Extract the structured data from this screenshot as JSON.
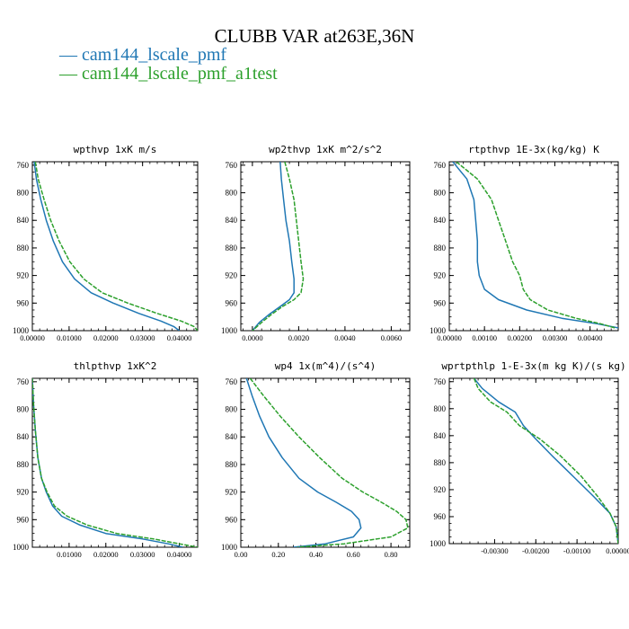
{
  "title": "CLUBB VAR at263E,36N",
  "legend": [
    {
      "label": "— cam144_lscale_pmf",
      "color": "#1f77b4"
    },
    {
      "label": "— cam144_lscale_pmf_a1test",
      "color": "#2ca02c"
    }
  ],
  "chart_data": [
    {
      "type": "line",
      "title": "wpthvp  1xK m/s",
      "xlim": [
        0,
        0.045
      ],
      "ylim": [
        1000,
        755
      ],
      "xticks": [
        0,
        0.01,
        0.02,
        0.03,
        0.04
      ],
      "xtick_labels": [
        "0.00000",
        "0.01000",
        "0.02000",
        "0.03000",
        "0.04000"
      ],
      "yticks": [
        760,
        800,
        840,
        880,
        920,
        960,
        1000
      ],
      "series": [
        {
          "name": "cam144_lscale_pmf",
          "color": "#1f77b4",
          "x": [
            0.0005,
            0.0011,
            0.0023,
            0.0038,
            0.0057,
            0.0082,
            0.0115,
            0.016,
            0.022,
            0.029,
            0.035,
            0.0385,
            0.04
          ],
          "y": [
            755,
            780,
            810,
            840,
            870,
            900,
            925,
            945,
            960,
            975,
            986,
            994,
            1000
          ]
        },
        {
          "name": "cam144_lscale_pmf_a1test",
          "color": "#2ca02c",
          "x": [
            0.0008,
            0.0016,
            0.0032,
            0.005,
            0.0073,
            0.0102,
            0.014,
            0.019,
            0.026,
            0.034,
            0.0405,
            0.044,
            0.045
          ],
          "y": [
            755,
            780,
            810,
            840,
            870,
            900,
            925,
            945,
            960,
            975,
            986,
            994,
            1000
          ]
        }
      ]
    },
    {
      "type": "line",
      "title": "wp2thvp  1xK m^2/s^2",
      "xlim": [
        -0.0005,
        0.0068
      ],
      "ylim": [
        1000,
        755
      ],
      "xticks": [
        0,
        0.002,
        0.004,
        0.006
      ],
      "xtick_labels": [
        "0.0000",
        "0.0020",
        "0.0040",
        "0.0060"
      ],
      "yticks": [
        760,
        800,
        840,
        880,
        920,
        960,
        1000
      ],
      "series": [
        {
          "name": "cam144_lscale_pmf",
          "color": "#1f77b4",
          "x": [
            0.0012,
            0.00125,
            0.00135,
            0.00145,
            0.0016,
            0.0017,
            0.0018,
            0.0018,
            0.0016,
            0.0012,
            0.0007,
            0.0003,
            0.0
          ],
          "y": [
            755,
            780,
            810,
            840,
            870,
            900,
            925,
            945,
            955,
            965,
            977,
            988,
            1000
          ]
        },
        {
          "name": "cam144_lscale_pmf_a1test",
          "color": "#2ca02c",
          "x": [
            0.0014,
            0.0016,
            0.0018,
            0.0019,
            0.002,
            0.0021,
            0.0022,
            0.0021,
            0.0018,
            0.0013,
            0.0008,
            0.0004,
            0.0
          ],
          "y": [
            755,
            780,
            810,
            840,
            870,
            900,
            925,
            945,
            955,
            965,
            977,
            988,
            1000
          ]
        }
      ]
    },
    {
      "type": "line",
      "title": "rtpthvp  1E-3x(kg/kg) K",
      "xlim": [
        0,
        0.0048
      ],
      "ylim": [
        1000,
        755
      ],
      "xticks": [
        0,
        0.001,
        0.002,
        0.003,
        0.004
      ],
      "xtick_labels": [
        "0.00000",
        "0.00100",
        "0.00200",
        "0.00300",
        "0.00400"
      ],
      "yticks": [
        760,
        800,
        840,
        880,
        920,
        960,
        1000
      ],
      "series": [
        {
          "name": "cam144_lscale_pmf",
          "color": "#1f77b4",
          "x": [
            0.0001,
            0.0005,
            0.0007,
            0.00075,
            0.0008,
            0.0008,
            0.00085,
            0.001,
            0.0014,
            0.0022,
            0.0032,
            0.0042,
            0.0048
          ],
          "y": [
            755,
            780,
            810,
            840,
            870,
            900,
            920,
            940,
            955,
            970,
            982,
            990,
            996
          ]
        },
        {
          "name": "cam144_lscale_pmf_a1test",
          "color": "#2ca02c",
          "x": [
            0.0002,
            0.0008,
            0.0012,
            0.0014,
            0.0016,
            0.0018,
            0.002,
            0.0021,
            0.0023,
            0.0028,
            0.0036,
            0.0043,
            0.0047
          ],
          "y": [
            755,
            780,
            810,
            840,
            870,
            900,
            920,
            940,
            955,
            970,
            982,
            990,
            996
          ]
        }
      ]
    },
    {
      "type": "line",
      "title": "thlpthvp  1xK^2",
      "xlim": [
        0,
        0.045
      ],
      "ylim": [
        1000,
        755
      ],
      "xticks": [
        0.01,
        0.02,
        0.03,
        0.04
      ],
      "xtick_labels": [
        "0.01000",
        "0.02000",
        "0.03000",
        "0.04000"
      ],
      "yticks": [
        760,
        800,
        840,
        880,
        920,
        960,
        1000
      ],
      "series": [
        {
          "name": "cam144_lscale_pmf",
          "color": "#1f77b4",
          "x": [
            0.0,
            0.0003,
            0.0008,
            0.0015,
            0.0025,
            0.0038,
            0.0055,
            0.008,
            0.013,
            0.02,
            0.03,
            0.037,
            0.041
          ],
          "y": [
            755,
            790,
            830,
            870,
            900,
            920,
            940,
            955,
            968,
            980,
            988,
            995,
            1000
          ]
        },
        {
          "name": "cam144_lscale_pmf_a1test",
          "color": "#2ca02c",
          "x": [
            0.0,
            0.0003,
            0.0008,
            0.0015,
            0.0025,
            0.004,
            0.006,
            0.0095,
            0.015,
            0.023,
            0.033,
            0.04,
            0.045
          ],
          "y": [
            755,
            790,
            830,
            870,
            900,
            920,
            940,
            955,
            968,
            980,
            988,
            995,
            1000
          ]
        }
      ]
    },
    {
      "type": "line",
      "title": "wp4  1x(m^4)/(s^4)",
      "xlim": [
        0,
        0.9
      ],
      "ylim": [
        1000,
        755
      ],
      "xticks": [
        0,
        0.2,
        0.4,
        0.6,
        0.8
      ],
      "xtick_labels": [
        "0.00",
        "0.20",
        "0.40",
        "0.60",
        "0.80"
      ],
      "yticks": [
        760,
        800,
        840,
        880,
        920,
        960,
        1000
      ],
      "series": [
        {
          "name": "cam144_lscale_pmf",
          "color": "#1f77b4",
          "x": [
            0.03,
            0.06,
            0.1,
            0.15,
            0.22,
            0.31,
            0.41,
            0.51,
            0.59,
            0.63,
            0.64,
            0.6,
            0.45,
            0.28
          ],
          "y": [
            755,
            780,
            810,
            840,
            870,
            900,
            920,
            935,
            948,
            960,
            972,
            985,
            995,
            1000
          ]
        },
        {
          "name": "cam144_lscale_pmf_a1test",
          "color": "#2ca02c",
          "x": [
            0.05,
            0.12,
            0.21,
            0.31,
            0.42,
            0.54,
            0.65,
            0.75,
            0.83,
            0.88,
            0.89,
            0.8,
            0.55,
            0.3
          ],
          "y": [
            755,
            780,
            810,
            840,
            870,
            900,
            920,
            935,
            948,
            960,
            972,
            985,
            995,
            1000
          ]
        }
      ]
    },
    {
      "type": "line",
      "title": "wprtpthlp  1-E-3x(m kg K)/(s kg)",
      "xlim": [
        -0.0041,
        0.0
      ],
      "ylim": [
        1000,
        755
      ],
      "xticks": [
        -0.003,
        -0.002,
        -0.001,
        0
      ],
      "xtick_labels": [
        "-0.00300",
        "-0.00200",
        "-0.00100",
        "0.00000"
      ],
      "yticks": [
        760,
        800,
        840,
        880,
        920,
        960,
        1000
      ],
      "series": [
        {
          "name": "cam144_lscale_pmf",
          "color": "#1f77b4",
          "x": [
            -0.0035,
            -0.0033,
            -0.0029,
            -0.0025,
            -0.0023,
            -0.002,
            -0.0016,
            -0.0011,
            -0.0006,
            -0.0002,
            -5e-05,
            0.0
          ],
          "y": [
            755,
            770,
            790,
            805,
            825,
            845,
            870,
            900,
            930,
            955,
            975,
            1000
          ]
        },
        {
          "name": "cam144_lscale_pmf_a1test",
          "color": "#2ca02c",
          "x": [
            -0.0035,
            -0.0034,
            -0.0031,
            -0.0027,
            -0.0024,
            -0.0019,
            -0.0014,
            -0.0009,
            -0.0005,
            -0.0002,
            -5e-05,
            0.0
          ],
          "y": [
            755,
            770,
            790,
            805,
            825,
            845,
            870,
            900,
            930,
            955,
            975,
            1000
          ]
        }
      ]
    }
  ]
}
